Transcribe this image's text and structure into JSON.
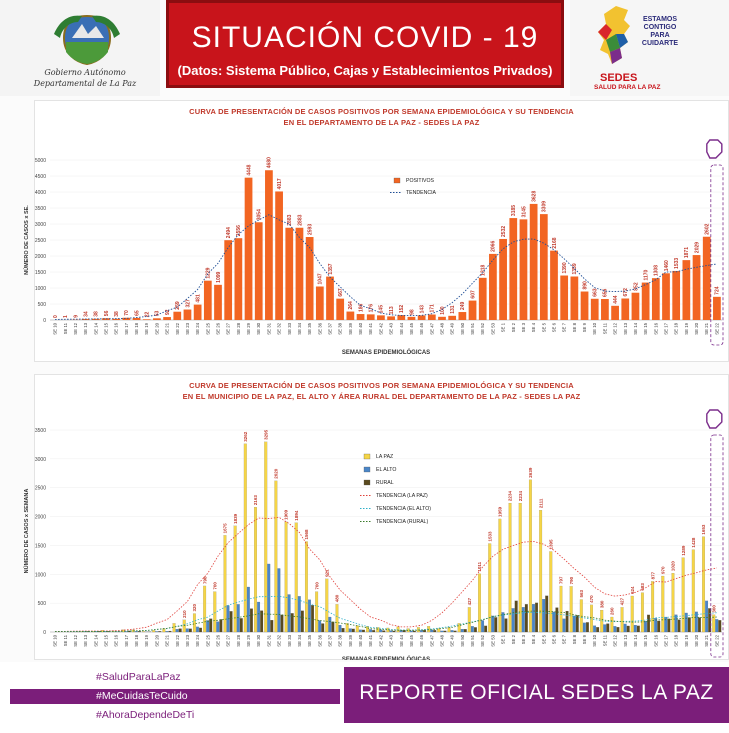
{
  "header": {
    "title": "SITUACIÓN  COVID - 19",
    "subtitle": "(Datos: Sistema Público, Cajas y Establecimientos Privados)",
    "gov_line1": "Gobierno Autónomo",
    "gov_line2": "Departamental de La Paz",
    "motto": [
      "ESTAMOS",
      "CONTIGO",
      "PARA",
      "CUIDARTE"
    ],
    "sedes_name": "SEDES",
    "sedes_slogan": "SALUD PARA LA PAZ",
    "colors": {
      "red": "#c8141b",
      "purple": "#7b1e7a"
    }
  },
  "chart_data": [
    {
      "type": "bar",
      "title_line1": "CURVA DE PRESENTACIÓN DE CASOS POSITIVOS POR SEMANA EPIDEMIOLÓGICA Y SU TENDENCIA",
      "title_line2": "EN EL DEPARTAMENTO DE LA PAZ - SEDES LA PAZ",
      "xlabel": "SEMANAS EPIDEMIOLÓGICAS",
      "ylabel": "NÚMERO DE CASOS x SE.",
      "ylim": [
        0,
        5000
      ],
      "yticks": [
        "0",
        "500",
        "1000",
        "1500",
        "2000",
        "2500",
        "3000",
        "3500",
        "4000",
        "4500",
        "5000"
      ],
      "categories": [
        "SE 10",
        "SE 11",
        "SE 12",
        "SE 13",
        "SE 14",
        "SE 15",
        "SE 16",
        "SE 17",
        "SE 18",
        "SE 19",
        "SE 20",
        "SE 21",
        "SE 22",
        "SE 23",
        "SE 24",
        "SE 25",
        "SE 26",
        "SE 27",
        "SE 28",
        "SE 29",
        "SE 30",
        "SE 31",
        "SE 32",
        "SE 33",
        "SE 34",
        "SE 35",
        "SE 36",
        "SE 37",
        "SE 38",
        "SE 39",
        "SE 40",
        "SE 41",
        "SE 42",
        "SE 43",
        "SE 44",
        "SE 45",
        "SE 46",
        "SE 47",
        "SE 48",
        "SE 49",
        "SE 50",
        "SE 51",
        "SE 52",
        "SE 53",
        "SE 1",
        "SE 2",
        "SE 3",
        "SE 4",
        "SE 5",
        "SE 6",
        "SE 7",
        "SE 8",
        "SE 9",
        "SE 10",
        "SE 11",
        "SE 12",
        "SE 13",
        "SE 14",
        "SE 15",
        "SE 16",
        "SE 17",
        "SE 18",
        "SE 19",
        "SE 20",
        "SE 21",
        "SE 22"
      ],
      "series": [
        {
          "name": "POSITIVOS",
          "color": "#f26522",
          "values": [
            0,
            1,
            9,
            34,
            38,
            56,
            38,
            70,
            65,
            22,
            53,
            92,
            259,
            327,
            481,
            1229,
            1099,
            2494,
            2556,
            4448,
            3054,
            4680,
            4017,
            2883,
            2883,
            2593,
            1047,
            1357,
            667,
            264,
            186,
            176,
            145,
            113,
            152,
            98,
            143,
            171,
            100,
            131,
            249,
            607,
            1318,
            2066,
            2532,
            3185,
            3145,
            3628,
            3309,
            2168,
            1390,
            1359,
            890,
            663,
            656,
            444,
            672,
            852,
            1170,
            1308,
            1460,
            1533,
            1871,
            2029,
            2602,
            724
          ]
        },
        {
          "name": "TENDENCIA",
          "color": "#1f4e96",
          "style": "dotted"
        }
      ],
      "legend": "top-right"
    },
    {
      "type": "bar",
      "title_line1": "CURVA DE PRESENTACIÓN DE CASOS POSITIVOS POR SEMANA EPIDEMIOLÓGICA Y SU TENDENCIA",
      "title_line2": "EN EL  MUNICIPIO DE LA PAZ, EL ALTO Y ÁREA RURAL DEL DEPARTAMENTO DE LA PAZ - SEDES LA PAZ",
      "xlabel": "SEMANAS EPIDEMIOLÓGICAS",
      "ylabel": "NÚMERO DE CASOS x SEMANA",
      "ylim": [
        0,
        3500
      ],
      "yticks": [
        "0",
        "500",
        "1000",
        "1500",
        "2000",
        "2500",
        "3000",
        "3500"
      ],
      "series": [
        {
          "name": "LA PAZ",
          "color": "#f5d547",
          "values": [
            0,
            0,
            3,
            10,
            12,
            30,
            22,
            40,
            38,
            12,
            30,
            60,
            150,
            210,
            320,
            798,
            700,
            1675,
            1839,
            3262,
            2163,
            3295,
            2620,
            1909,
            1894,
            1568,
            700,
            921,
            480,
            150,
            110,
            100,
            80,
            70,
            90,
            60,
            80,
            100,
            60,
            80,
            150,
            427,
            1011,
            1533,
            1959,
            2234,
            2234,
            2639,
            2111,
            1395,
            797,
            790,
            563,
            470,
            380,
            260,
            427,
            624,
            683,
            877,
            970,
            1020,
            1289,
            1428,
            1653,
            300
          ]
        },
        {
          "name": "EL ALTO",
          "color": "#4a86c8",
          "values": [
            0,
            0,
            2,
            10,
            12,
            12,
            8,
            10,
            12,
            5,
            10,
            15,
            50,
            60,
            90,
            200,
            180,
            460,
            480,
            780,
            520,
            1179,
            1101,
            650,
            620,
            560,
            200,
            260,
            120,
            60,
            40,
            45,
            40,
            25,
            30,
            20,
            30,
            40,
            20,
            30,
            50,
            100,
            200,
            280,
            340,
            410,
            430,
            483,
            570,
            350,
            230,
            280,
            160,
            110,
            130,
            100,
            140,
            120,
            190,
            240,
            260,
            300,
            330,
            350,
            540,
            220
          ]
        },
        {
          "name": "RURAL",
          "color": "#5a4a1e",
          "values": [
            0,
            1,
            4,
            14,
            14,
            14,
            8,
            20,
            15,
            5,
            13,
            17,
            59,
            57,
            71,
            231,
            219,
            359,
            237,
            406,
            371,
            206,
            296,
            324,
            369,
            465,
            147,
            176,
            67,
            54,
            36,
            31,
            25,
            18,
            32,
            18,
            33,
            31,
            20,
            21,
            49,
            80,
            107,
            253,
            233,
            541,
            481,
            506,
            628,
            423,
            363,
            289,
            167,
            83,
            146,
            84,
            105,
            108,
            297,
            191,
            230,
            213,
            252,
            251,
            409,
            204
          ]
        },
        {
          "name": "TENDENCIA (LA PAZ)",
          "color": "#e0403a",
          "style": "dotted"
        },
        {
          "name": "TENDENCIA (EL ALTO)",
          "color": "#2fb0c8",
          "style": "dotted"
        },
        {
          "name": "TENDENCIA (RURAL)",
          "color": "#3a7a2a",
          "style": "dotted"
        }
      ],
      "legend": "top-right"
    }
  ],
  "footer": {
    "hashtags": [
      "#SaludParaLaPaz",
      "#MeCuidasTeCuido",
      "#AhoraDependeDeTi"
    ],
    "report": "REPORTE OFICIAL SEDES LA PAZ"
  }
}
